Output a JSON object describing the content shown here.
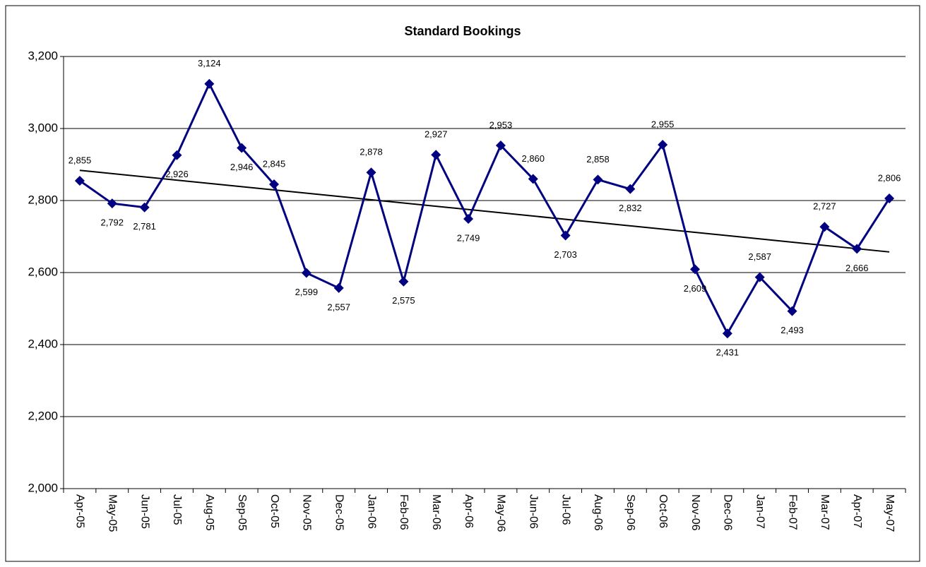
{
  "chart_data": {
    "type": "line",
    "title": "Standard Bookings",
    "categories": [
      "Apr-05",
      "May-05",
      "Jun-05",
      "Jul-05",
      "Aug-05",
      "Sep-05",
      "Oct-05",
      "Nov-05",
      "Dec-05",
      "Jan-06",
      "Feb-06",
      "Mar-06",
      "Apr-06",
      "May-06",
      "Jun-06",
      "Jul-06",
      "Aug-06",
      "Sep-06",
      "Oct-06",
      "Nov-06",
      "Dec-06",
      "Jan-07",
      "Feb-07",
      "Mar-07",
      "Apr-07",
      "May-07"
    ],
    "values": [
      2855,
      2792,
      2781,
      2926,
      3124,
      2946,
      2845,
      2599,
      2557,
      2878,
      2575,
      2927,
      2749,
      2953,
      2860,
      2703,
      2858,
      2832,
      2955,
      2609,
      2431,
      2587,
      2493,
      2727,
      2666,
      2806
    ],
    "value_labels": [
      "2,855",
      "2,792",
      "2,781",
      "2,926",
      "3,124",
      "2,946",
      "2,845",
      "2,599",
      "2,557",
      "2,878",
      "2,575",
      "2,927",
      "2,749",
      "2,953",
      "2,860",
      "2,703",
      "2,858",
      "2,832",
      "2,955",
      "2,609",
      "2,431",
      "2,587",
      "2,493",
      "2,727",
      "2,666",
      "2,806"
    ],
    "color": "#000080",
    "trendline": "linear",
    "ylim": [
      2000,
      3200
    ],
    "yticks": [
      {
        "value": 2000,
        "label": "2,000"
      },
      {
        "value": 2200,
        "label": "2,200"
      },
      {
        "value": 2400,
        "label": "2,400"
      },
      {
        "value": 2600,
        "label": "2,600"
      },
      {
        "value": 2800,
        "label": "2,800"
      },
      {
        "value": 3000,
        "label": "3,000"
      },
      {
        "value": 3200,
        "label": "3,200"
      }
    ],
    "grid": true
  }
}
